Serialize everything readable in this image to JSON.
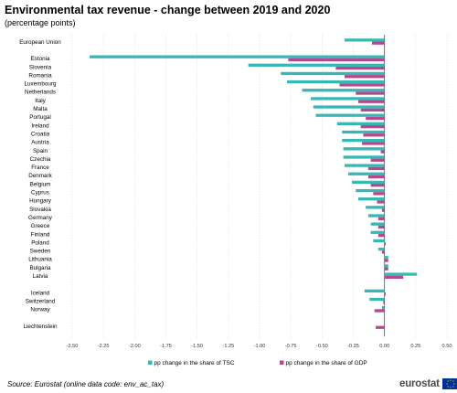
{
  "header": {
    "title": "Environmental tax revenue - change between 2019 and 2020",
    "subtitle": "(percentage points)"
  },
  "footer": {
    "source": "Source: Eurostat (online data code: env_ac_tax)",
    "logo_text": "eurostat"
  },
  "colors": {
    "tsc": "#3ab7b4",
    "gdp": "#b5488f",
    "axis": "#555555",
    "grid": "#dddddd"
  },
  "chart_data": {
    "type": "bar",
    "orientation": "horizontal",
    "title": "Environmental tax revenue - change between 2019 and 2020",
    "subtitle": "(percentage points)",
    "xlim": [
      -2.5,
      0.5
    ],
    "xticks": [
      -2.5,
      -2.25,
      -2.0,
      -1.75,
      -1.5,
      -1.25,
      -1.0,
      -0.75,
      -0.5,
      -0.25,
      0.0,
      0.25,
      0.5
    ],
    "xtick_labels": [
      "-2.50",
      "-2.25",
      "-2.00",
      "-1.75",
      "-1.50",
      "-1.25",
      "-1.00",
      "-0.75",
      "-0.50",
      "-0.25",
      "0.00",
      "0.25",
      "0.50"
    ],
    "grid": "vertical",
    "legend_position": "bottom",
    "categories": [
      "European Union",
      "Estonia",
      "Slovenia",
      "Romania",
      "Luxembourg",
      "Netherlands",
      "Italy",
      "Malta",
      "Portugal",
      "Ireland",
      "Croatia",
      "Austria",
      "Spain",
      "Czechia",
      "France",
      "Denmark",
      "Belgium",
      "Cyprus",
      "Hungary",
      "Slovakia",
      "Germany",
      "Greece",
      "Finland",
      "Poland",
      "Sweden",
      "Lithuania",
      "Bulgaria",
      "Latvia",
      "Iceland",
      "Switzerland",
      "Norway",
      "Liechtenstein"
    ],
    "gap_after": [
      0,
      27,
      30
    ],
    "series": [
      {
        "name": "pp change in the share of TSC",
        "color": "#3ab7b4",
        "values": [
          -0.32,
          -2.36,
          -1.09,
          -0.83,
          -0.78,
          -0.66,
          -0.59,
          -0.57,
          -0.55,
          -0.38,
          -0.34,
          -0.34,
          -0.33,
          -0.33,
          -0.32,
          -0.29,
          -0.26,
          -0.23,
          -0.21,
          -0.15,
          -0.13,
          -0.11,
          -0.11,
          -0.09,
          -0.05,
          0.03,
          0.03,
          0.26,
          -0.16,
          -0.12,
          -0.02,
          null
        ]
      },
      {
        "name": "pp change in the share of GDP",
        "color": "#b5488f",
        "values": [
          -0.1,
          -0.77,
          -0.39,
          -0.32,
          -0.36,
          -0.23,
          -0.21,
          -0.19,
          -0.15,
          -0.19,
          -0.17,
          -0.18,
          -0.03,
          -0.11,
          -0.13,
          -0.13,
          -0.11,
          -0.09,
          -0.06,
          -0.02,
          -0.05,
          -0.05,
          -0.05,
          0.01,
          -0.02,
          0.03,
          0.03,
          0.15,
          0.01,
          -0.01,
          -0.08,
          -0.07
        ]
      }
    ]
  }
}
